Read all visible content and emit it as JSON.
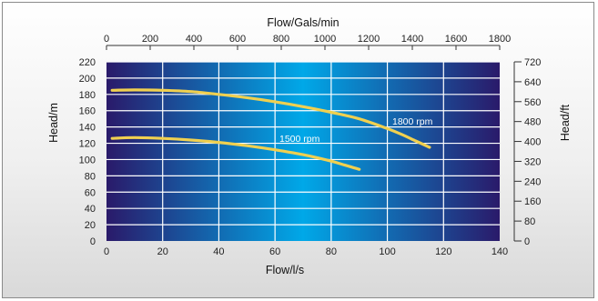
{
  "chart_data": {
    "type": "line",
    "title": "",
    "xlabel": "Flow/l/s",
    "x2label": "Flow/Gals/min",
    "ylabel": "Head/m",
    "y2label": "Head/ft",
    "xlim": [
      0,
      140
    ],
    "ylim": [
      0,
      220
    ],
    "x2lim": [
      0,
      1800
    ],
    "y2lim": [
      0,
      720
    ],
    "x_ticks": [
      0,
      20,
      40,
      60,
      80,
      100,
      120,
      140
    ],
    "y_ticks": [
      0,
      20,
      40,
      60,
      80,
      100,
      120,
      140,
      160,
      180,
      200,
      220
    ],
    "x2_ticks": [
      0,
      200,
      400,
      600,
      800,
      1000,
      1200,
      1400,
      1600,
      1800
    ],
    "y2_ticks": [
      0,
      80,
      160,
      240,
      320,
      400,
      480,
      560,
      640,
      720
    ],
    "grid": true,
    "colors": {
      "curve": "#f0d050",
      "plot_edge": "#2a1a6a",
      "plot_mid": "#00a8e8",
      "grid": "#ffffff"
    },
    "series": [
      {
        "name": "1800 rpm",
        "x": [
          2,
          10,
          20,
          30,
          40,
          50,
          60,
          70,
          80,
          90,
          100,
          105,
          110,
          115
        ],
        "y": [
          185,
          185.5,
          185,
          183.5,
          180,
          176,
          171,
          165,
          158,
          150,
          138,
          131,
          123,
          115
        ]
      },
      {
        "name": "1500 rpm",
        "x": [
          2,
          10,
          20,
          30,
          40,
          50,
          60,
          70,
          80,
          85,
          90
        ],
        "y": [
          126,
          127,
          126,
          124,
          121,
          117,
          112,
          106,
          98,
          93,
          88
        ]
      }
    ]
  }
}
